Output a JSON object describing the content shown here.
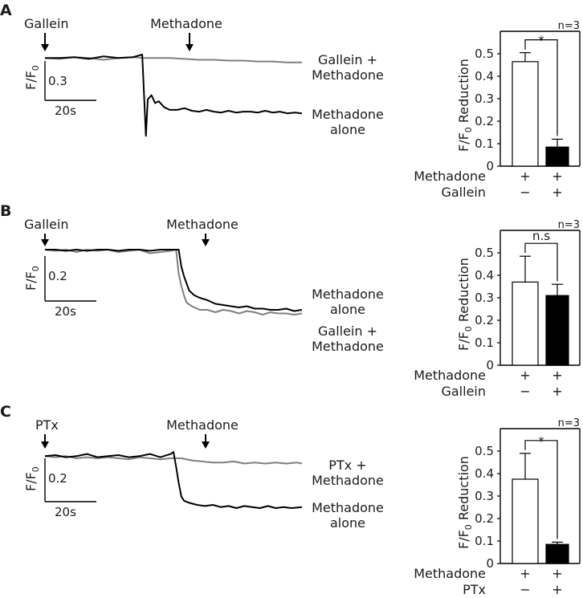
{
  "panels": [
    {
      "letter": "A",
      "trace": {
        "pre_label": "Gallein",
        "drug_label": "Methadone",
        "ylabel": "F/F",
        "ylabel_sub": "0",
        "scale_y": "0.3",
        "scale_x": "20s",
        "labels": [
          {
            "lines": [
              "Gallein +",
              "Methadone"
            ],
            "color": "#7f7f7f"
          },
          {
            "lines": [
              "Methadone",
              "alone"
            ],
            "color": "#000000"
          }
        ]
      },
      "bar_chart": {
        "n_label": "n=3",
        "sig_label": "*",
        "row_labels": [
          "Methadone",
          "Gallein"
        ],
        "row_marks": [
          [
            "+",
            "+"
          ],
          [
            "−",
            "+"
          ]
        ]
      }
    },
    {
      "letter": "B",
      "trace": {
        "pre_label": "Gallein",
        "drug_label": "Methadone",
        "ylabel": "F/F",
        "ylabel_sub": "0",
        "scale_y": "0.2",
        "scale_x": "20s",
        "labels": [
          {
            "lines": [
              "Methadone",
              "alone"
            ],
            "color": "#000000"
          },
          {
            "lines": [
              "Gallein +",
              "Methadone"
            ],
            "color": "#7f7f7f"
          }
        ]
      },
      "bar_chart": {
        "n_label": "n=3",
        "sig_label": "n.s",
        "row_labels": [
          "Methadone",
          "Gallein"
        ],
        "row_marks": [
          [
            "+",
            "+"
          ],
          [
            "−",
            "+"
          ]
        ]
      }
    },
    {
      "letter": "C",
      "trace": {
        "pre_label": "PTx",
        "drug_label": "Methadone",
        "ylabel": "F/F",
        "ylabel_sub": "0",
        "scale_y": "0.2",
        "scale_x": "20s",
        "labels": [
          {
            "lines": [
              "PTx +",
              "Methadone"
            ],
            "color": "#7f7f7f"
          },
          {
            "lines": [
              "Methadone",
              "alone"
            ],
            "color": "#000000"
          }
        ]
      },
      "bar_chart": {
        "n_label": "n=3",
        "sig_label": "*",
        "row_labels": [
          "Methadone",
          "PTx"
        ],
        "row_marks": [
          [
            "+",
            "+"
          ],
          [
            "−",
            "+"
          ]
        ]
      }
    }
  ],
  "chart_data": [
    {
      "type": "line",
      "panel": "A",
      "title": "",
      "xlabel": "",
      "ylabel": "F/F0",
      "scale_bar": {
        "y": 0.3,
        "x_seconds": 20
      },
      "ylim": [
        0,
        1.2
      ],
      "series": [
        {
          "name": "Gallein + Methadone",
          "color": "#7f7f7f",
          "x": [
            0,
            8,
            16,
            24,
            32,
            40,
            48,
            54,
            60,
            68,
            76,
            84,
            92,
            100,
            108,
            116,
            124,
            132,
            140
          ],
          "y": [
            1.0,
            0.99,
            1.01,
            1.0,
            0.98,
            1.0,
            1.01,
            1.0,
            1.0,
            1.0,
            0.99,
            0.98,
            0.98,
            0.97,
            0.97,
            0.96,
            0.96,
            0.95,
            0.95
          ]
        },
        {
          "name": "Methadone alone",
          "color": "#000000",
          "x": [
            0,
            8,
            16,
            24,
            32,
            40,
            48,
            53,
            55,
            56,
            58,
            60,
            62,
            65,
            68,
            72,
            76,
            80,
            84,
            88,
            92,
            96,
            100,
            104,
            108,
            112,
            116,
            120,
            124,
            128,
            132,
            136,
            140
          ],
          "y": [
            1.0,
            1.0,
            1.01,
            0.99,
            1.02,
            1.0,
            1.01,
            1.04,
            0.1,
            0.52,
            0.57,
            0.48,
            0.5,
            0.43,
            0.4,
            0.4,
            0.42,
            0.39,
            0.38,
            0.4,
            0.38,
            0.37,
            0.39,
            0.37,
            0.38,
            0.38,
            0.37,
            0.39,
            0.37,
            0.38,
            0.36,
            0.37,
            0.36
          ]
        }
      ],
      "annotations": [
        "Gallein",
        "Methadone"
      ]
    },
    {
      "type": "bar",
      "panel": "A",
      "title": "",
      "xlabel": "",
      "ylabel": "F/F0 Reduction",
      "ylim": [
        0,
        0.6
      ],
      "yticks": [
        0,
        0.1,
        0.2,
        0.3,
        0.4,
        0.5
      ],
      "categories": [
        "Methadone + / Gallein −",
        "Methadone + / Gallein +"
      ],
      "values": [
        0.465,
        0.085
      ],
      "errors": [
        0.04,
        0.035
      ],
      "fills": [
        "#ffffff",
        "#000000"
      ],
      "significance": "*",
      "n": "n=3"
    },
    {
      "type": "line",
      "panel": "B",
      "title": "",
      "xlabel": "",
      "ylabel": "F/F0",
      "scale_bar": {
        "y": 0.2,
        "x_seconds": 20
      },
      "ylim": [
        0,
        1.2
      ],
      "series": [
        {
          "name": "Methadone alone",
          "color": "#000000",
          "x": [
            0,
            8,
            16,
            24,
            32,
            40,
            48,
            56,
            64,
            72,
            80,
            88,
            96,
            102,
            104,
            106,
            108,
            110,
            114,
            118,
            124,
            130,
            136,
            142,
            148,
            154,
            160,
            166,
            172,
            178,
            184,
            190,
            196
          ],
          "y": [
            1.0,
            1.0,
            0.99,
            1.0,
            0.99,
            1.0,
            1.0,
            0.99,
            1.0,
            1.0,
            0.99,
            1.0,
            1.0,
            1.0,
            0.86,
            0.78,
            0.72,
            0.66,
            0.62,
            0.6,
            0.58,
            0.55,
            0.54,
            0.53,
            0.52,
            0.53,
            0.51,
            0.51,
            0.5,
            0.5,
            0.51,
            0.49,
            0.5
          ]
        },
        {
          "name": "Gallein + Methadone",
          "color": "#7f7f7f",
          "x": [
            0,
            8,
            16,
            24,
            32,
            40,
            48,
            56,
            64,
            72,
            80,
            88,
            96,
            100,
            102,
            104,
            106,
            108,
            112,
            118,
            124,
            130,
            136,
            142,
            148,
            154,
            160,
            166,
            172,
            178,
            184,
            190,
            196
          ],
          "y": [
            1.0,
            0.99,
            1.0,
            0.98,
            1.0,
            0.99,
            1.0,
            0.98,
            0.99,
            1.0,
            0.97,
            0.98,
            0.99,
            1.0,
            0.8,
            0.7,
            0.62,
            0.56,
            0.53,
            0.5,
            0.5,
            0.48,
            0.5,
            0.49,
            0.47,
            0.49,
            0.48,
            0.46,
            0.48,
            0.47,
            0.47,
            0.46,
            0.47
          ]
        }
      ],
      "annotations": [
        "Gallein",
        "Methadone"
      ]
    },
    {
      "type": "bar",
      "panel": "B",
      "title": "",
      "xlabel": "",
      "ylabel": "F/F0 Reduction",
      "ylim": [
        0,
        0.6
      ],
      "yticks": [
        0,
        0.1,
        0.2,
        0.3,
        0.4,
        0.5
      ],
      "categories": [
        "Methadone + / Gallein −",
        "Methadone + / Gallein +"
      ],
      "values": [
        0.37,
        0.31
      ],
      "errors": [
        0.115,
        0.05
      ],
      "fills": [
        "#ffffff",
        "#000000"
      ],
      "significance": "n.s",
      "n": "n=3"
    },
    {
      "type": "line",
      "panel": "C",
      "title": "",
      "xlabel": "",
      "ylabel": "F/F0",
      "scale_bar": {
        "y": 0.2,
        "x_seconds": 20
      },
      "ylim": [
        0,
        1.2
      ],
      "series": [
        {
          "name": "PTx + Methadone",
          "color": "#7f7f7f",
          "x": [
            0,
            8,
            16,
            24,
            32,
            40,
            48,
            56,
            64,
            72,
            80,
            88,
            96,
            104,
            112,
            120,
            128,
            136,
            144,
            152,
            160,
            168,
            176,
            184,
            192,
            196
          ],
          "y": [
            1.0,
            0.99,
            1.0,
            0.98,
            0.99,
            0.98,
            0.99,
            0.98,
            0.97,
            0.99,
            0.98,
            0.97,
            0.98,
            0.98,
            0.96,
            0.95,
            0.94,
            0.94,
            0.95,
            0.93,
            0.94,
            0.93,
            0.94,
            0.93,
            0.94,
            0.93
          ]
        },
        {
          "name": "Methadone alone",
          "color": "#000000",
          "x": [
            0,
            8,
            16,
            24,
            32,
            40,
            48,
            56,
            64,
            72,
            80,
            88,
            96,
            98,
            100,
            102,
            104,
            106,
            110,
            116,
            122,
            128,
            134,
            140,
            146,
            152,
            158,
            164,
            170,
            176,
            182,
            188,
            196
          ],
          "y": [
            1.0,
            1.01,
            0.99,
            1.0,
            1.02,
            0.99,
            1.0,
            1.01,
            0.99,
            1.0,
            1.02,
            0.99,
            1.02,
            1.04,
            0.9,
            0.75,
            0.62,
            0.58,
            0.56,
            0.54,
            0.53,
            0.54,
            0.52,
            0.53,
            0.51,
            0.53,
            0.52,
            0.51,
            0.53,
            0.51,
            0.52,
            0.51,
            0.52
          ]
        }
      ],
      "annotations": [
        "PTx",
        "Methadone"
      ]
    },
    {
      "type": "bar",
      "panel": "C",
      "title": "",
      "xlabel": "",
      "ylabel": "F/F0 Reduction",
      "ylim": [
        0,
        0.6
      ],
      "yticks": [
        0,
        0.1,
        0.2,
        0.3,
        0.4,
        0.5
      ],
      "categories": [
        "Methadone + / PTx −",
        "Methadone + / PTx +"
      ],
      "values": [
        0.375,
        0.085
      ],
      "errors": [
        0.115,
        0.01
      ],
      "fills": [
        "#ffffff",
        "#000000"
      ],
      "significance": "*",
      "n": "n=3"
    }
  ]
}
